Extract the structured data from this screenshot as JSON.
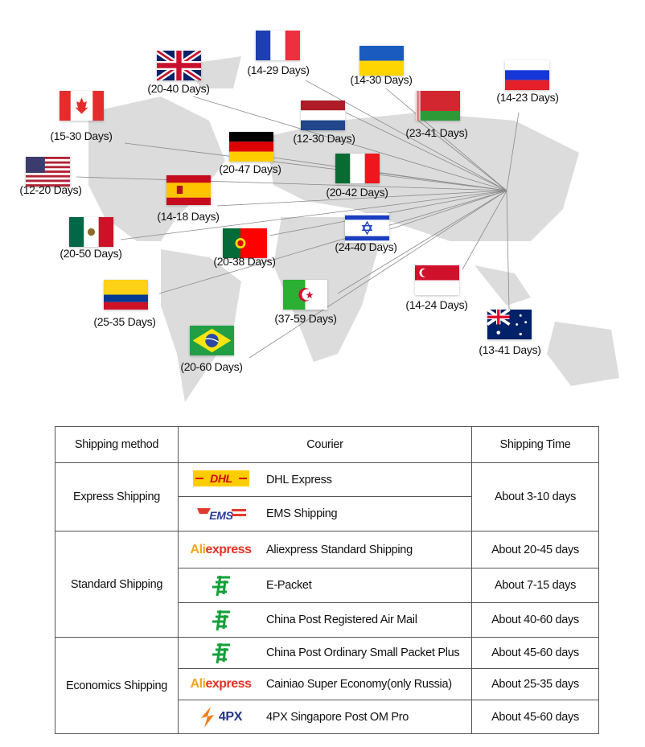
{
  "map": {
    "destinations": [
      {
        "flag": "uk-flag-icon",
        "days": "(20-40 Days)"
      },
      {
        "flag": "france-flag-icon",
        "days": "(14-29 Days)"
      },
      {
        "flag": "ukraine-flag-icon",
        "days": "(14-30 Days)"
      },
      {
        "flag": "russia-flag-icon",
        "days": "(14-23 Days)"
      },
      {
        "flag": "canada-flag-icon",
        "days": "(15-30 Days)"
      },
      {
        "flag": "netherlands-flag-icon",
        "days": "(12-30 Days)"
      },
      {
        "flag": "belarus-flag-icon",
        "days": "(23-41 Days)"
      },
      {
        "flag": "germany-flag-icon",
        "days": "(20-47 Days)"
      },
      {
        "flag": "usa-flag-icon",
        "days": "(12-20 Days)"
      },
      {
        "flag": "italy-flag-icon",
        "days": "(20-42 Days)"
      },
      {
        "flag": "spain-flag-icon",
        "days": "(14-18 Days)"
      },
      {
        "flag": "mexico-flag-icon",
        "days": "(20-50 Days)"
      },
      {
        "flag": "israel-flag-icon",
        "days": "(24-40 Days)"
      },
      {
        "flag": "portugal-flag-icon",
        "days": "(20-38 Days)"
      },
      {
        "flag": "colombia-flag-icon",
        "days": "(25-35 Days)"
      },
      {
        "flag": "algeria-flag-icon",
        "days": "(37-59 Days)"
      },
      {
        "flag": "singapore-flag-icon",
        "days": "(14-24 Days)"
      },
      {
        "flag": "brazil-flag-icon",
        "days": "(20-60 Days)"
      },
      {
        "flag": "australia-flag-icon",
        "days": "(13-41 Days)"
      }
    ]
  },
  "table": {
    "headers": [
      "Shipping method",
      "Courier",
      "Shipping Time"
    ],
    "groups": {
      "express": "Express Shipping",
      "standard": "Standard Shipping",
      "economics": "Economics Shipping"
    },
    "rows": [
      {
        "logo": "dhl-logo",
        "courier": "DHL Express"
      },
      {
        "logo": "ems-logo",
        "courier": "EMS Shipping"
      },
      {
        "logo": "aliexpress-logo",
        "logo_text": "AliExpress",
        "courier": "Aliexpress Standard Shipping",
        "time": "About 20-45 days"
      },
      {
        "logo": "china-post-logo",
        "courier": "E-Packet",
        "time": "About 7-15 days"
      },
      {
        "logo": "china-post-logo",
        "courier": "China Post Registered Air Mail",
        "time": "About 40-60 days"
      },
      {
        "logo": "china-post-logo",
        "courier": "China Post Ordinary Small Packet Plus",
        "time": "About 45-60 days"
      },
      {
        "logo": "aliexpress-logo",
        "logo_text": "AliExpress",
        "courier": "Cainiao Super Economy(only Russia)",
        "time": "About 25-35 days"
      },
      {
        "logo": "4px-logo",
        "logo_text": "4PX",
        "courier": "4PX Singapore Post OM Pro",
        "time": "About 45-60 days"
      }
    ],
    "express_time": "About 3-10 days"
  }
}
